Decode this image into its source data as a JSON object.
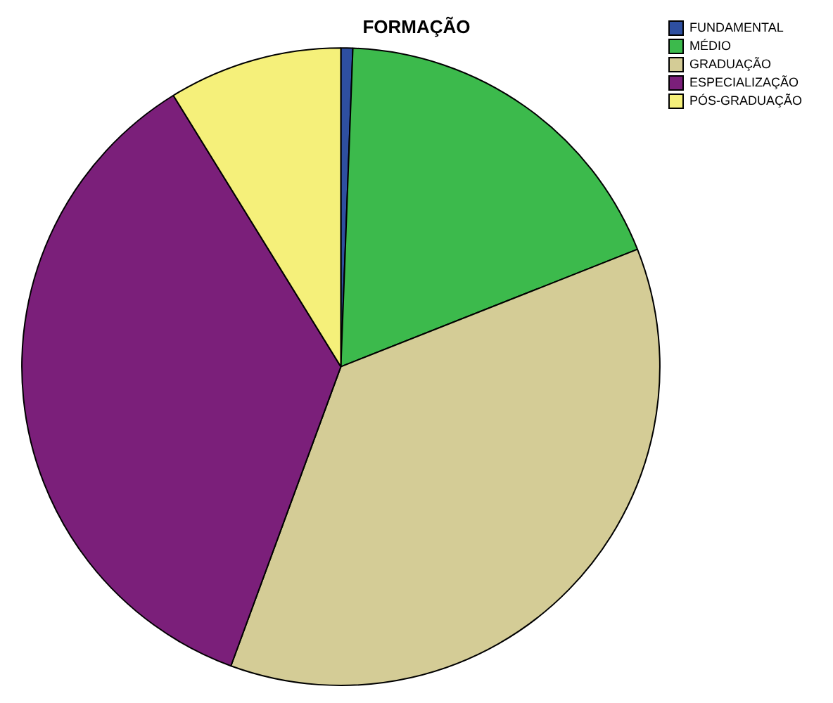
{
  "chart_data": {
    "type": "pie",
    "title": "FORMAÇÃO",
    "categories": [
      "FUNDAMENTAL",
      "MÉDIO",
      "GRADUAÇÃO",
      "ESPECIALIZAÇÃO",
      "PÓS-GRADUAÇÃO"
    ],
    "values": [
      0.6,
      18.4,
      36.6,
      35.6,
      8.8
    ],
    "colors": [
      "#2e4fa0",
      "#3cba4c",
      "#d4cc96",
      "#7b1f7a",
      "#f5f07a"
    ],
    "legend": "top right"
  }
}
